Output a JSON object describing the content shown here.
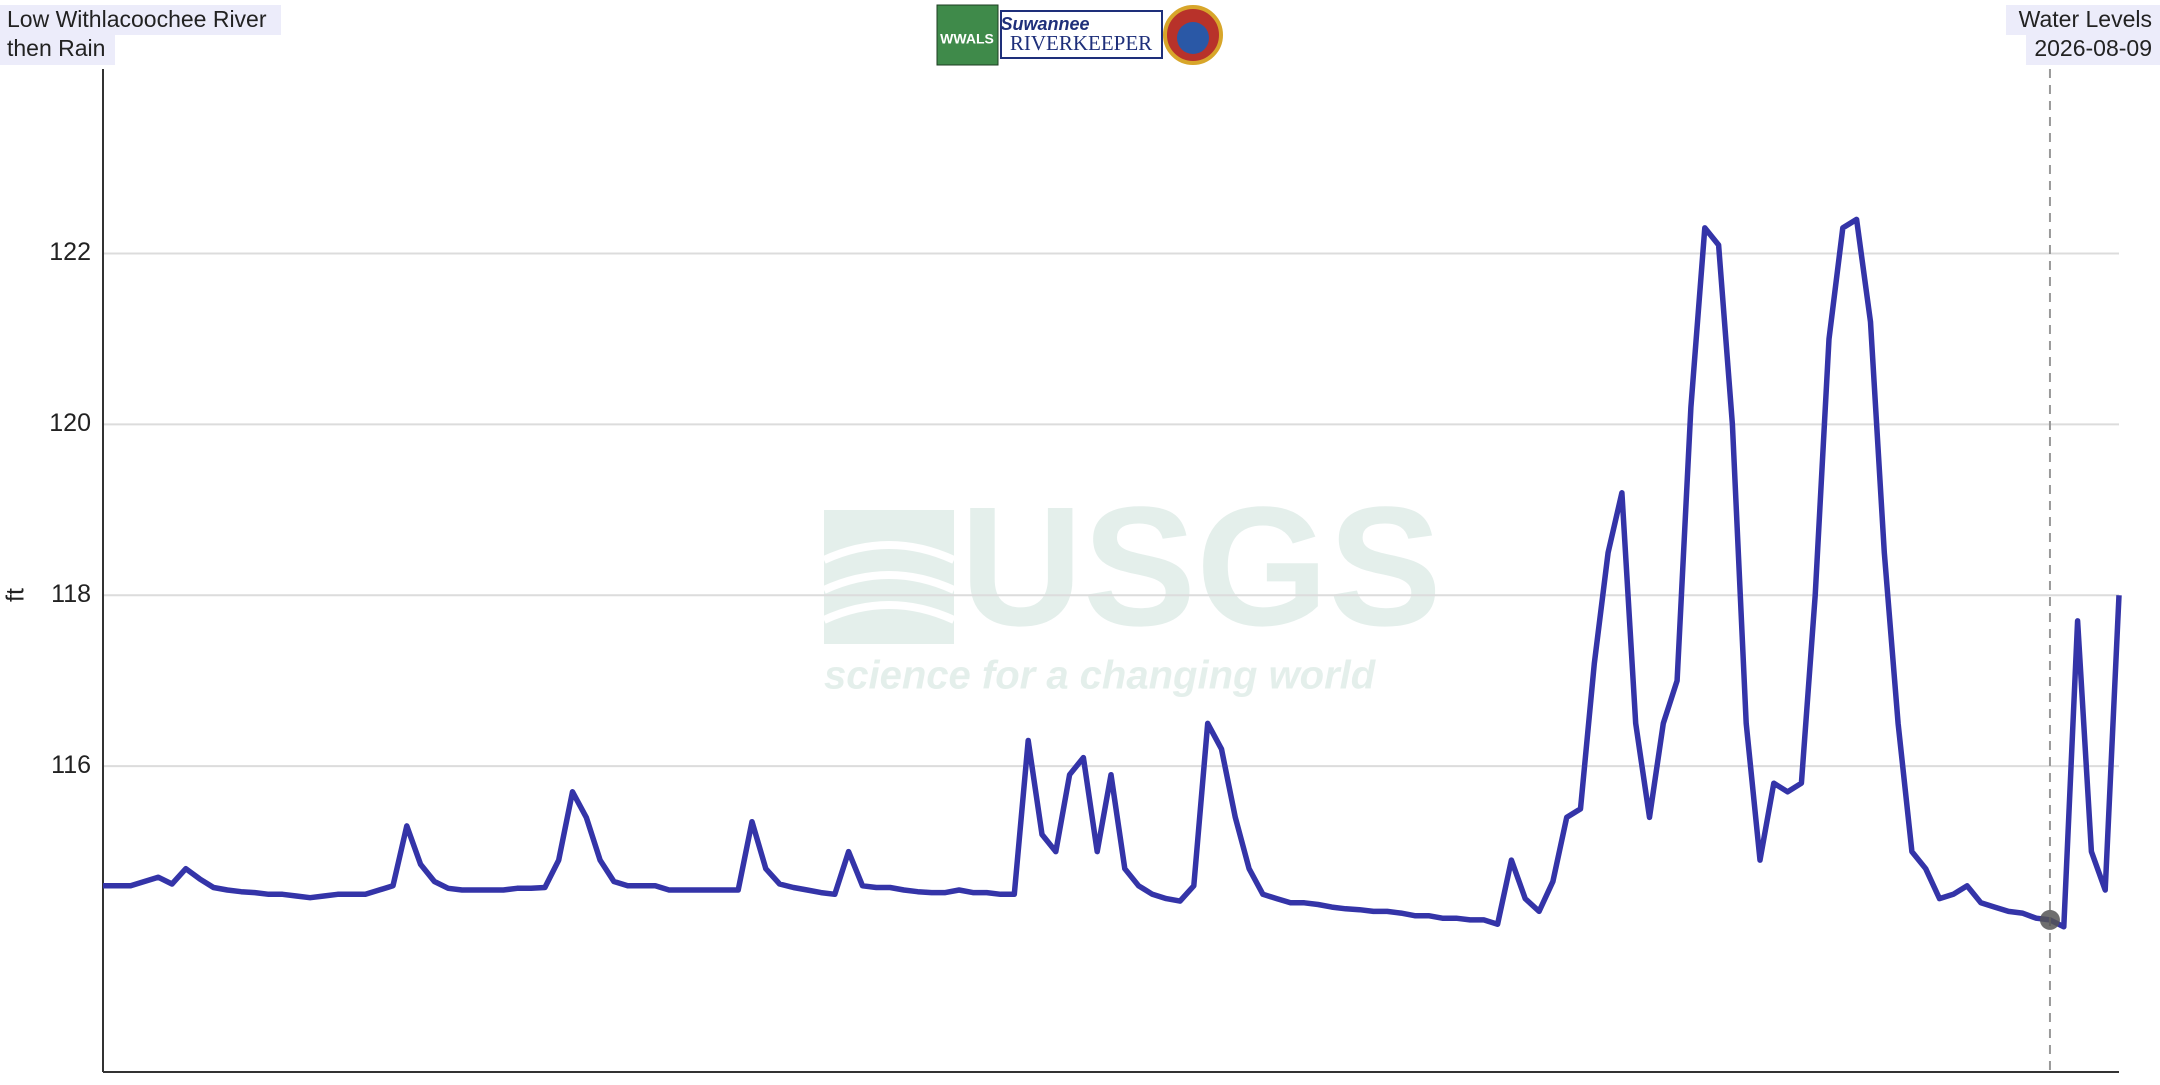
{
  "chart_data": {
    "type": "line",
    "title_left": [
      "Low Withlacoochee River",
      "then Rain"
    ],
    "title_right": [
      "Water Levels",
      "2026-08-09"
    ],
    "logos": {
      "wwals": "WWALS",
      "riverkeeper": [
        "Suwannee",
        "RIVERKEEPER"
      ]
    },
    "watermark": [
      "USGS",
      "science for a changing world"
    ],
    "ylabel": "ft",
    "color": "#3434a8",
    "ylim": [
      112.42,
      124.16
    ],
    "yticks": [
      116,
      118,
      120,
      122
    ],
    "grid": true,
    "values": [
      114.6,
      114.6,
      114.6,
      114.65,
      114.7,
      114.62,
      114.8,
      114.68,
      114.58,
      114.55,
      114.53,
      114.52,
      114.5,
      114.5,
      114.48,
      114.46,
      114.48,
      114.5,
      114.5,
      114.5,
      114.55,
      114.6,
      115.3,
      114.85,
      114.65,
      114.57,
      114.55,
      114.55,
      114.55,
      114.55,
      114.57,
      114.57,
      114.58,
      114.9,
      115.7,
      115.4,
      114.9,
      114.65,
      114.6,
      114.6,
      114.6,
      114.55,
      114.55,
      114.55,
      114.55,
      114.55,
      114.55,
      115.35,
      114.8,
      114.62,
      114.58,
      114.55,
      114.52,
      114.5,
      115,
      114.6,
      114.58,
      114.58,
      114.55,
      114.53,
      114.52,
      114.52,
      114.55,
      114.52,
      114.52,
      114.5,
      114.5,
      116.3,
      115.2,
      115,
      115.9,
      116.1,
      115,
      115.9,
      114.8,
      114.6,
      114.5,
      114.45,
      114.42,
      114.6,
      116.5,
      116.2,
      115.4,
      114.8,
      114.5,
      114.45,
      114.4,
      114.4,
      114.38,
      114.35,
      114.33,
      114.32,
      114.3,
      114.3,
      114.28,
      114.25,
      114.25,
      114.22,
      114.22,
      114.2,
      114.2,
      114.15,
      114.9,
      114.45,
      114.3,
      114.65,
      115.4,
      115.5,
      117.2,
      118.5,
      119.2,
      116.5,
      115.4,
      116.5,
      117,
      120.2,
      122.3,
      122.1,
      120,
      116.5,
      114.9,
      115.8,
      115.7,
      115.8,
      118,
      121,
      122.3,
      122.4,
      121.2,
      118.5,
      116.5,
      115,
      114.8,
      114.45,
      114.5,
      114.6,
      114.4,
      114.35,
      114.3,
      114.28,
      114.22,
      114.2,
      114.12,
      117.7,
      115,
      114.55,
      118
    ]
  }
}
